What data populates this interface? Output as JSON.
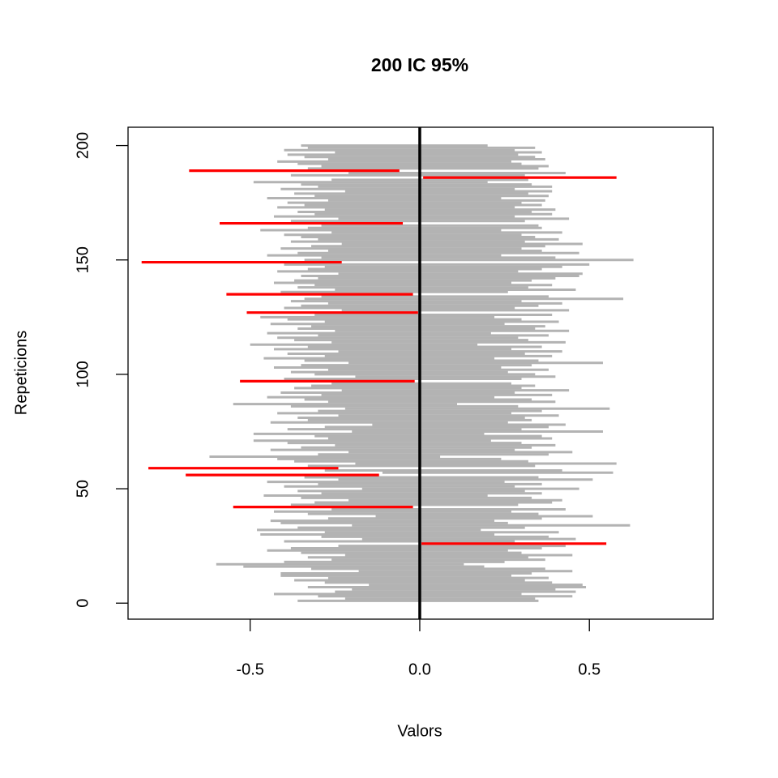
{
  "chart_data": {
    "type": "interval",
    "title": "200 IC 95%",
    "xlabel": "Valors",
    "ylabel": "Repeticions",
    "xlim": [
      -0.86,
      0.865
    ],
    "ylim": [
      -7,
      208
    ],
    "xticks": [
      -0.5,
      {
        "value": 0,
        "label": "0.0"
      },
      0.5
    ],
    "yticks": [
      0,
      50,
      100,
      150,
      200
    ],
    "vline": 0,
    "vline_color": "#000000",
    "color": "#b3b3b3",
    "miss_color": "#ff0000",
    "intervals": {
      "y": [
        1,
        2,
        3,
        4,
        5,
        6,
        7,
        8,
        9,
        10,
        11,
        12,
        13,
        14,
        15,
        16,
        17,
        18,
        19,
        20,
        21,
        22,
        23,
        24,
        25,
        26,
        27,
        28,
        29,
        30,
        31,
        32,
        33,
        34,
        35,
        36,
        37,
        38,
        39,
        40,
        41,
        42,
        43,
        44,
        45,
        46,
        47,
        48,
        49,
        50,
        51,
        52,
        53,
        54,
        55,
        56,
        57,
        58,
        59,
        60,
        61,
        62,
        63,
        64,
        65,
        66,
        67,
        68,
        69,
        70,
        71,
        72,
        73,
        74,
        75,
        76,
        77,
        78,
        79,
        80,
        81,
        82,
        83,
        84,
        85,
        86,
        87,
        88,
        89,
        90,
        91,
        92,
        93,
        94,
        95,
        96,
        97,
        98,
        99,
        100,
        101,
        102,
        103,
        104,
        105,
        106,
        107,
        108,
        109,
        110,
        111,
        112,
        113,
        114,
        115,
        116,
        117,
        118,
        119,
        120,
        121,
        122,
        123,
        124,
        125,
        126,
        127,
        128,
        129,
        130,
        131,
        132,
        133,
        134,
        135,
        136,
        137,
        138,
        139,
        140,
        141,
        142,
        143,
        144,
        145,
        146,
        147,
        148,
        149,
        150,
        151,
        152,
        153,
        154,
        155,
        156,
        157,
        158,
        159,
        160,
        161,
        162,
        163,
        164,
        165,
        166,
        167,
        168,
        169,
        170,
        171,
        172,
        173,
        174,
        175,
        176,
        177,
        178,
        179,
        180,
        181,
        182,
        183,
        184,
        185,
        186,
        187,
        188,
        189,
        190,
        191,
        192,
        193,
        194,
        195,
        196,
        197,
        198,
        199,
        200
      ],
      "lower": [
        -0.36,
        -0.22,
        -0.3,
        -0.43,
        -0.25,
        -0.2,
        -0.33,
        -0.15,
        -0.28,
        -0.37,
        -0.27,
        -0.41,
        -0.41,
        -0.18,
        -0.32,
        -0.52,
        -0.6,
        -0.4,
        -0.26,
        -0.33,
        -0.22,
        -0.35,
        -0.45,
        -0.38,
        -0.24,
        0.005,
        -0.4,
        -0.17,
        -0.29,
        -0.47,
        -0.28,
        -0.48,
        -0.36,
        -0.2,
        -0.41,
        -0.44,
        -0.27,
        -0.13,
        -0.33,
        -0.43,
        -0.26,
        -0.55,
        -0.38,
        -0.31,
        -0.21,
        -0.35,
        -0.46,
        -0.29,
        -0.36,
        -0.17,
        -0.4,
        -0.3,
        -0.45,
        -0.24,
        -0.34,
        -0.69,
        -0.11,
        -0.28,
        -0.8,
        -0.33,
        -0.19,
        -0.37,
        -0.42,
        -0.62,
        -0.3,
        -0.21,
        -0.44,
        -0.35,
        -0.25,
        -0.39,
        -0.49,
        -0.27,
        -0.31,
        -0.49,
        -0.2,
        -0.39,
        -0.28,
        -0.14,
        -0.44,
        -0.33,
        -0.36,
        -0.24,
        -0.42,
        -0.3,
        -0.22,
        -0.38,
        -0.55,
        -0.27,
        -0.34,
        -0.45,
        -0.29,
        -0.41,
        -0.23,
        -0.37,
        -0.32,
        -0.26,
        -0.53,
        -0.4,
        -0.19,
        -0.31,
        -0.38,
        -0.27,
        -0.43,
        -0.35,
        -0.21,
        -0.34,
        -0.46,
        -0.28,
        -0.39,
        -0.24,
        -0.43,
        -0.33,
        -0.5,
        -0.26,
        -0.37,
        -0.42,
        -0.3,
        -0.45,
        -0.25,
        -0.36,
        -0.32,
        -0.44,
        -0.28,
        -0.39,
        -0.47,
        -0.31,
        -0.51,
        -0.23,
        -0.4,
        -0.35,
        -0.27,
        -0.38,
        -0.34,
        -0.29,
        -0.57,
        -0.41,
        -0.25,
        -0.36,
        -0.31,
        -0.43,
        -0.37,
        -0.3,
        -0.35,
        -0.24,
        -0.42,
        -0.33,
        -0.28,
        -0.4,
        -0.82,
        -0.34,
        -0.29,
        -0.45,
        -0.36,
        -0.27,
        -0.41,
        -0.32,
        -0.23,
        -0.38,
        -0.3,
        -0.35,
        -0.4,
        -0.26,
        -0.47,
        -0.33,
        -0.29,
        -0.59,
        -0.38,
        -0.24,
        -0.43,
        -0.31,
        -0.36,
        -0.28,
        -0.42,
        -0.34,
        -0.39,
        -0.27,
        -0.45,
        -0.31,
        -0.37,
        -0.22,
        -0.41,
        -0.3,
        -0.35,
        -0.49,
        -0.26,
        0.01,
        -0.38,
        -0.21,
        -0.68,
        -0.33,
        -0.29,
        -0.36,
        -0.42,
        -0.27,
        -0.34,
        -0.39,
        -0.25,
        -0.4,
        -0.33,
        -0.35
      ],
      "upper": [
        0.35,
        0.34,
        0.45,
        0.3,
        0.46,
        0.4,
        0.49,
        0.48,
        0.39,
        0.31,
        0.38,
        0.27,
        0.33,
        0.45,
        0.37,
        0.19,
        0.13,
        0.25,
        0.37,
        0.32,
        0.45,
        0.3,
        0.26,
        0.36,
        0.43,
        0.55,
        0.28,
        0.46,
        0.38,
        0.22,
        0.41,
        0.18,
        0.31,
        0.62,
        0.26,
        0.22,
        0.36,
        0.51,
        0.35,
        0.27,
        0.43,
        -0.02,
        0.29,
        0.39,
        0.42,
        0.33,
        0.2,
        0.36,
        0.31,
        0.47,
        0.28,
        0.36,
        0.25,
        0.51,
        0.35,
        -0.12,
        0.57,
        0.42,
        -0.24,
        0.34,
        0.58,
        0.32,
        0.24,
        0.06,
        0.38,
        0.45,
        0.28,
        0.33,
        0.4,
        0.3,
        0.21,
        0.39,
        0.36,
        0.19,
        0.54,
        0.3,
        0.38,
        0.43,
        0.26,
        0.33,
        0.31,
        0.41,
        0.27,
        0.36,
        0.56,
        0.29,
        0.11,
        0.4,
        0.33,
        0.22,
        0.39,
        0.28,
        0.44,
        0.3,
        0.34,
        0.27,
        -0.015,
        0.3,
        0.4,
        0.34,
        0.26,
        0.38,
        0.24,
        0.33,
        0.54,
        0.35,
        0.22,
        0.39,
        0.31,
        0.42,
        0.27,
        0.36,
        0.17,
        0.43,
        0.32,
        0.29,
        0.38,
        0.21,
        0.44,
        0.34,
        0.37,
        0.25,
        0.41,
        0.3,
        0.22,
        0.39,
        -0.005,
        0.44,
        0.28,
        0.35,
        0.42,
        0.3,
        0.6,
        0.38,
        -0.02,
        0.26,
        0.46,
        0.32,
        0.39,
        0.27,
        0.33,
        0.4,
        0.47,
        0.48,
        0.29,
        0.36,
        0.42,
        0.5,
        -0.23,
        0.63,
        0.4,
        0.24,
        0.47,
        0.36,
        0.3,
        0.37,
        0.48,
        0.31,
        0.41,
        0.34,
        0.3,
        0.42,
        0.24,
        0.36,
        0.35,
        -0.05,
        0.31,
        0.44,
        0.28,
        0.39,
        0.33,
        0.4,
        0.28,
        0.36,
        0.3,
        0.37,
        0.24,
        0.38,
        0.32,
        0.39,
        0.28,
        0.39,
        0.33,
        0.2,
        0.32,
        0.58,
        0.31,
        0.43,
        -0.06,
        0.35,
        0.38,
        0.3,
        0.27,
        0.37,
        0.34,
        0.29,
        0.36,
        0.28,
        0.34,
        0.2
      ]
    }
  }
}
